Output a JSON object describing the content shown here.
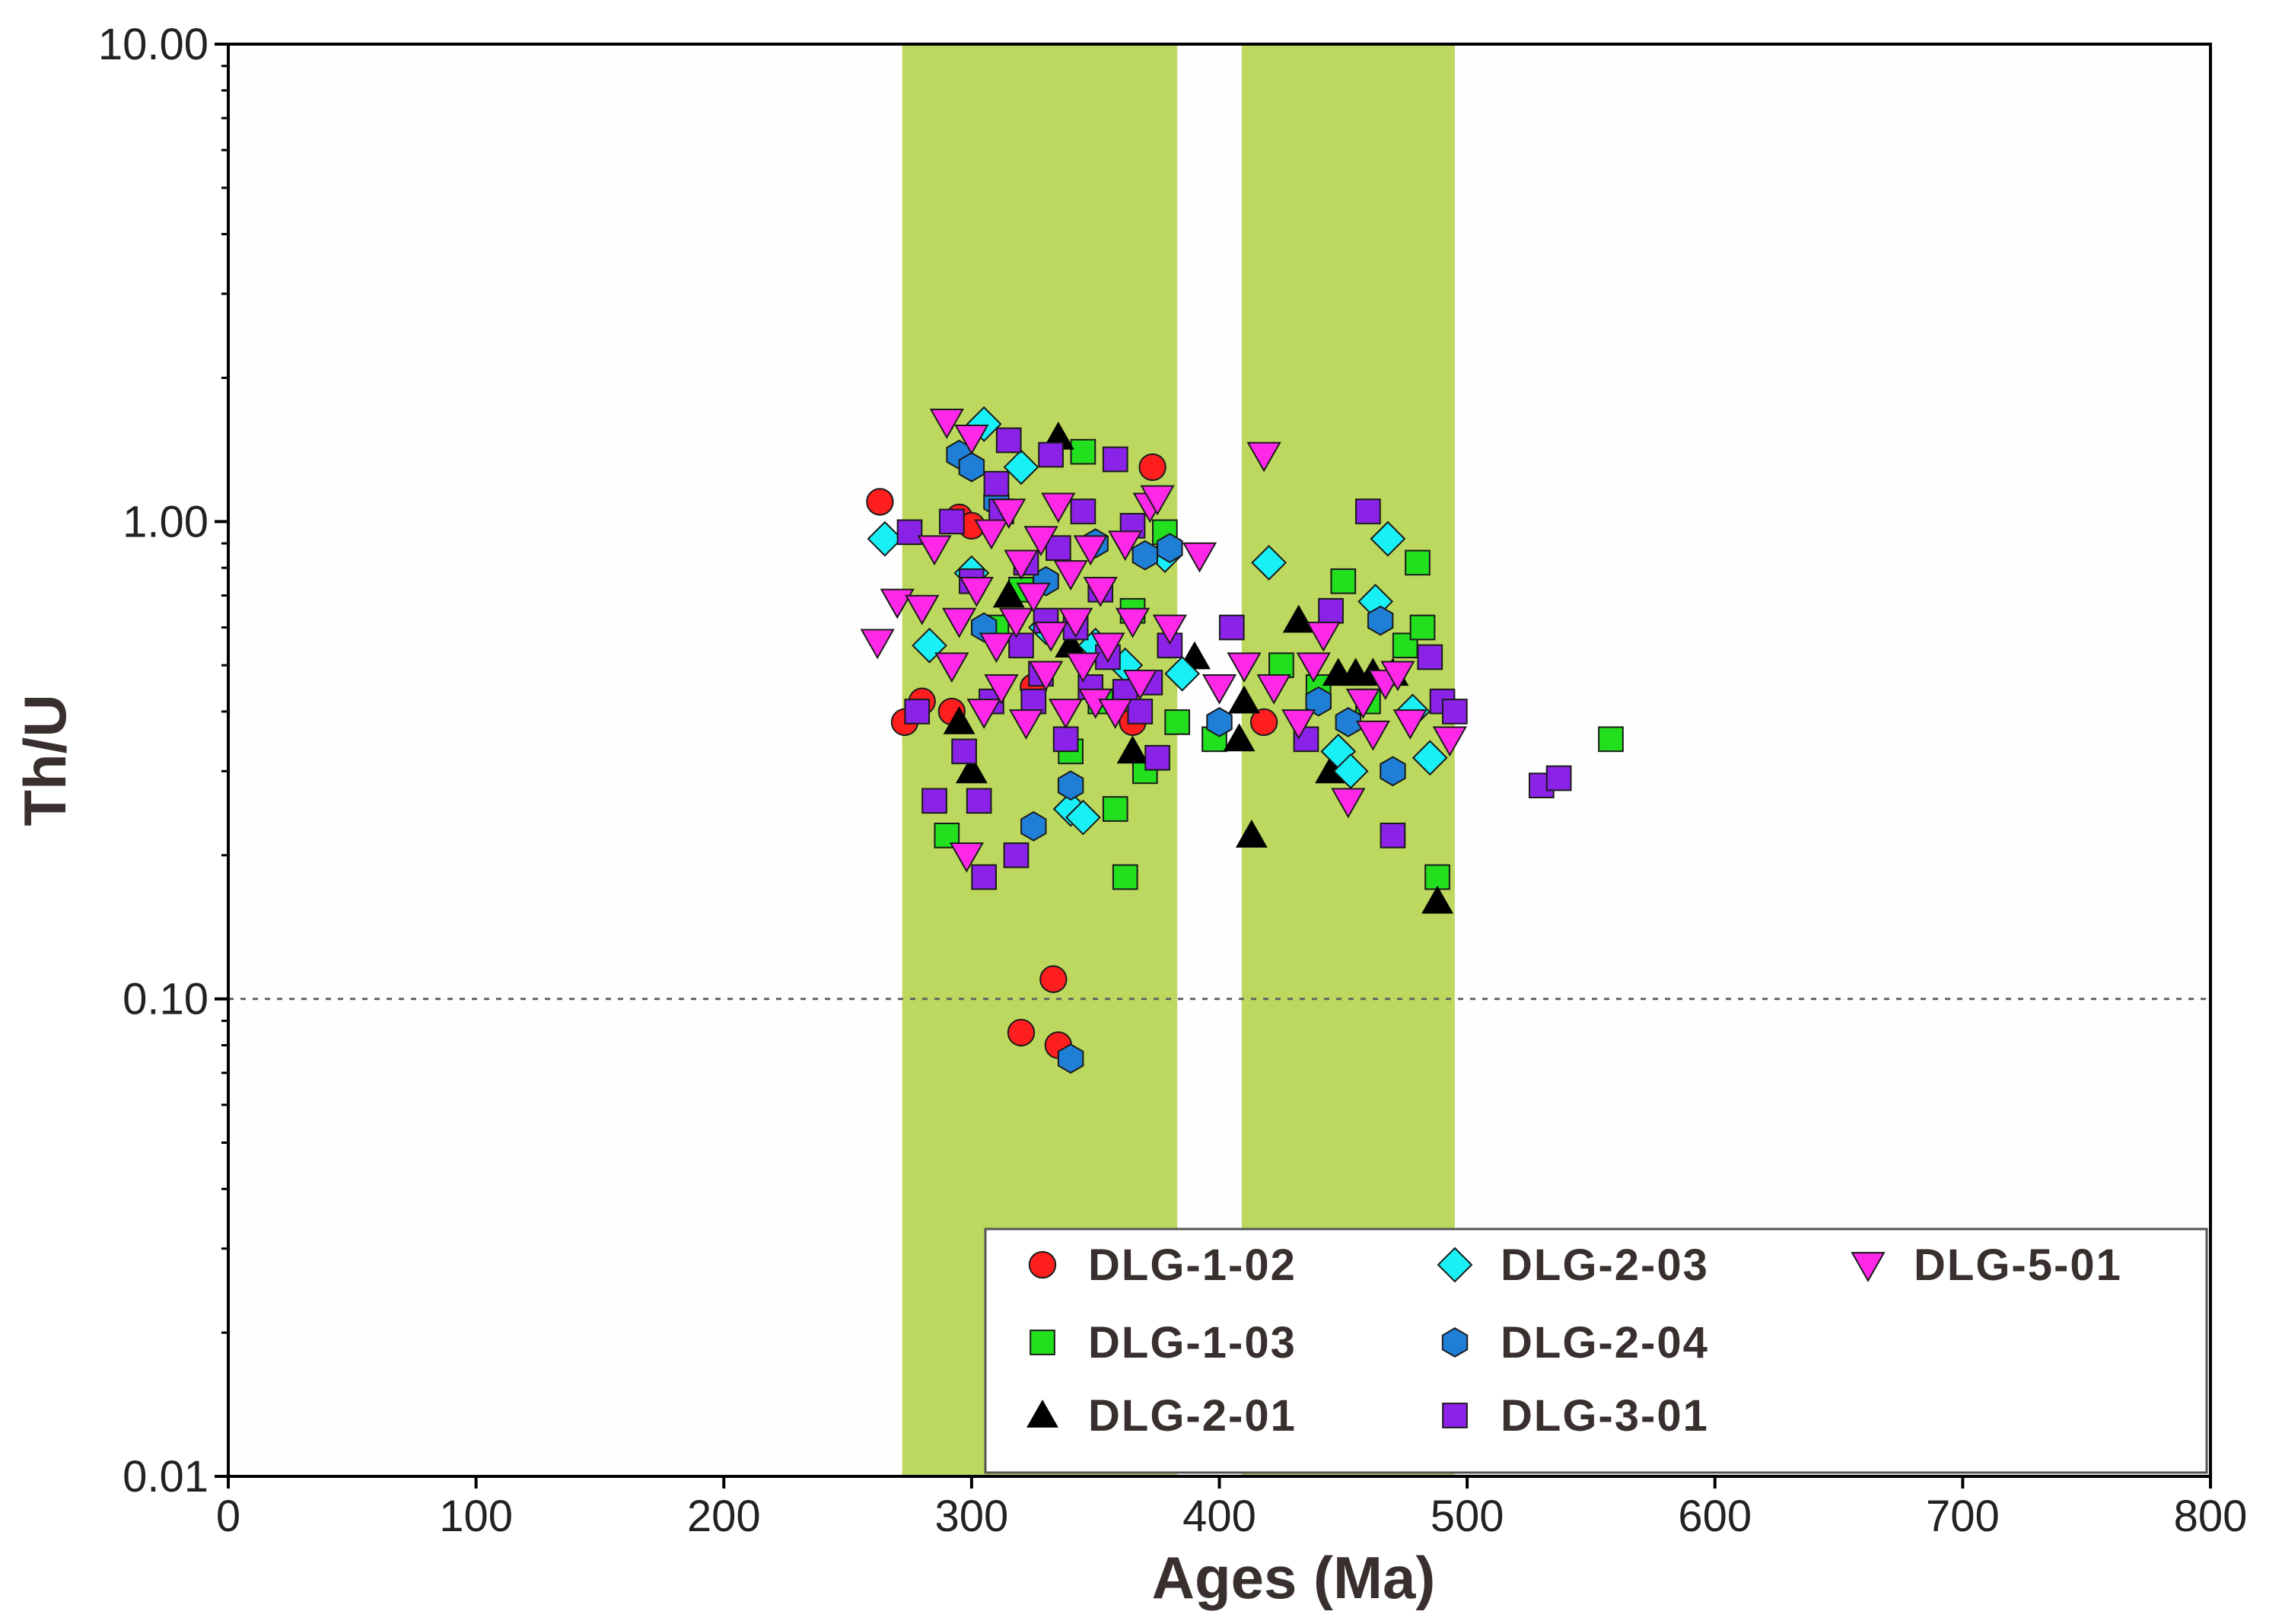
{
  "chart_data": {
    "type": "scatter",
    "title": "",
    "xlabel": "Ages (Ma)",
    "ylabel": "Th/U",
    "xlim": [
      0,
      800
    ],
    "ylim": [
      0.01,
      10
    ],
    "yscale": "log",
    "x_ticks": [
      "0",
      "100",
      "200",
      "300",
      "400",
      "500",
      "600",
      "700",
      "800"
    ],
    "y_ticks": [
      "0.01",
      "0.10",
      "1.00",
      "10.00"
    ],
    "reference_line": {
      "y": 0.1,
      "style": "dotted"
    },
    "shaded_bands": [
      {
        "x_from": 272,
        "x_to": 383,
        "color": "#bcd85e"
      },
      {
        "x_from": 409,
        "x_to": 495,
        "color": "#bcd85e"
      }
    ],
    "legend_position": "bottom-right",
    "series": [
      {
        "name": "DLG-1-02",
        "marker": "circle",
        "color": "#ff1e1e",
        "points": [
          [
            263,
            1.1
          ],
          [
            273,
            0.38
          ],
          [
            280,
            0.42
          ],
          [
            295,
            1.02
          ],
          [
            300,
            0.98
          ],
          [
            320,
            0.085
          ],
          [
            333,
            0.11
          ],
          [
            335,
            0.08
          ],
          [
            365,
            0.38
          ],
          [
            373,
            1.3
          ],
          [
            418,
            0.38
          ],
          [
            292,
            0.4
          ],
          [
            325,
            0.45
          ]
        ]
      },
      {
        "name": "DLG-1-03",
        "marker": "square",
        "color": "#22e01e",
        "points": [
          [
            290,
            0.22
          ],
          [
            340,
            0.33
          ],
          [
            345,
            1.4
          ],
          [
            352,
            0.42
          ],
          [
            358,
            0.25
          ],
          [
            362,
            0.18
          ],
          [
            370,
            0.3
          ],
          [
            378,
            0.95
          ],
          [
            383,
            0.38
          ],
          [
            398,
            0.35
          ],
          [
            425,
            0.5
          ],
          [
            440,
            0.45
          ],
          [
            450,
            0.75
          ],
          [
            460,
            0.42
          ],
          [
            475,
            0.55
          ],
          [
            480,
            0.82
          ],
          [
            482,
            0.6
          ],
          [
            488,
            0.18
          ],
          [
            558,
            0.35
          ],
          [
            310,
            0.6
          ],
          [
            320,
            0.72
          ],
          [
            365,
            0.65
          ]
        ]
      },
      {
        "name": "DLG-2-01",
        "marker": "triangle",
        "color": "#000000",
        "points": [
          [
            295,
            0.38
          ],
          [
            300,
            0.3
          ],
          [
            335,
            1.5
          ],
          [
            365,
            0.33
          ],
          [
            390,
            0.52
          ],
          [
            408,
            0.35
          ],
          [
            410,
            0.42
          ],
          [
            413,
            0.22
          ],
          [
            432,
            0.62
          ],
          [
            445,
            0.3
          ],
          [
            448,
            0.48
          ],
          [
            455,
            0.48
          ],
          [
            462,
            0.48
          ],
          [
            470,
            0.48
          ],
          [
            488,
            0.16
          ],
          [
            315,
            0.7
          ],
          [
            340,
            0.55
          ]
        ]
      },
      {
        "name": "DLG-2-03",
        "marker": "diamond",
        "color": "#19f0f5",
        "points": [
          [
            265,
            0.92
          ],
          [
            283,
            0.55
          ],
          [
            305,
            1.6
          ],
          [
            320,
            1.3
          ],
          [
            340,
            0.25
          ],
          [
            345,
            0.24
          ],
          [
            350,
            0.55
          ],
          [
            362,
            0.5
          ],
          [
            378,
            0.85
          ],
          [
            385,
            0.48
          ],
          [
            420,
            0.82
          ],
          [
            448,
            0.33
          ],
          [
            453,
            0.3
          ],
          [
            463,
            0.68
          ],
          [
            468,
            0.92
          ],
          [
            478,
            0.4
          ],
          [
            485,
            0.32
          ],
          [
            330,
            0.6
          ],
          [
            300,
            0.78
          ]
        ]
      },
      {
        "name": "DLG-2-04",
        "marker": "hexagon",
        "color": "#1f7fd6",
        "points": [
          [
            295,
            1.38
          ],
          [
            300,
            1.3
          ],
          [
            310,
            1.1
          ],
          [
            325,
            0.23
          ],
          [
            340,
            0.28
          ],
          [
            340,
            0.075
          ],
          [
            370,
            0.85
          ],
          [
            380,
            0.88
          ],
          [
            400,
            0.38
          ],
          [
            440,
            0.42
          ],
          [
            452,
            0.38
          ],
          [
            465,
            0.62
          ],
          [
            470,
            0.3
          ],
          [
            305,
            0.6
          ],
          [
            330,
            0.75
          ],
          [
            350,
            0.9
          ]
        ]
      },
      {
        "name": "DLG-3-01",
        "marker": "square",
        "color": "#8b22e8",
        "points": [
          [
            275,
            0.95
          ],
          [
            278,
            0.4
          ],
          [
            285,
            0.26
          ],
          [
            292,
            1.0
          ],
          [
            297,
            0.33
          ],
          [
            300,
            0.75
          ],
          [
            303,
            0.26
          ],
          [
            305,
            0.18
          ],
          [
            308,
            0.42
          ],
          [
            310,
            1.2
          ],
          [
            312,
            1.05
          ],
          [
            315,
            1.48
          ],
          [
            318,
            0.2
          ],
          [
            320,
            0.55
          ],
          [
            322,
            0.82
          ],
          [
            325,
            0.42
          ],
          [
            328,
            0.48
          ],
          [
            330,
            0.62
          ],
          [
            332,
            1.38
          ],
          [
            335,
            0.88
          ],
          [
            338,
            0.35
          ],
          [
            342,
            0.6
          ],
          [
            345,
            1.05
          ],
          [
            348,
            0.45
          ],
          [
            352,
            0.72
          ],
          [
            355,
            0.52
          ],
          [
            358,
            1.35
          ],
          [
            362,
            0.44
          ],
          [
            365,
            0.98
          ],
          [
            368,
            0.4
          ],
          [
            372,
            0.46
          ],
          [
            375,
            0.32
          ],
          [
            380,
            0.55
          ],
          [
            405,
            0.6
          ],
          [
            435,
            0.35
          ],
          [
            445,
            0.65
          ],
          [
            460,
            1.05
          ],
          [
            470,
            0.22
          ],
          [
            485,
            0.52
          ],
          [
            490,
            0.42
          ],
          [
            495,
            0.4
          ],
          [
            530,
            0.28
          ],
          [
            537,
            0.29
          ]
        ]
      },
      {
        "name": "DLG-5-01",
        "marker": "triangle-down",
        "color": "#ff28e8",
        "points": [
          [
            262,
            0.56
          ],
          [
            270,
            0.68
          ],
          [
            280,
            0.66
          ],
          [
            285,
            0.88
          ],
          [
            290,
            1.62
          ],
          [
            292,
            0.5
          ],
          [
            295,
            0.62
          ],
          [
            298,
            0.2
          ],
          [
            300,
            1.5
          ],
          [
            302,
            0.72
          ],
          [
            305,
            0.4
          ],
          [
            308,
            0.95
          ],
          [
            310,
            0.55
          ],
          [
            312,
            0.45
          ],
          [
            315,
            1.05
          ],
          [
            318,
            0.62
          ],
          [
            320,
            0.82
          ],
          [
            322,
            0.38
          ],
          [
            325,
            0.7
          ],
          [
            328,
            0.92
          ],
          [
            330,
            0.48
          ],
          [
            332,
            0.58
          ],
          [
            335,
            1.08
          ],
          [
            338,
            0.4
          ],
          [
            340,
            0.78
          ],
          [
            342,
            0.62
          ],
          [
            345,
            0.5
          ],
          [
            348,
            0.88
          ],
          [
            350,
            0.42
          ],
          [
            352,
            0.72
          ],
          [
            355,
            0.55
          ],
          [
            358,
            0.4
          ],
          [
            362,
            0.9
          ],
          [
            365,
            0.62
          ],
          [
            368,
            0.46
          ],
          [
            372,
            1.08
          ],
          [
            375,
            1.12
          ],
          [
            380,
            0.6
          ],
          [
            392,
            0.85
          ],
          [
            400,
            0.45
          ],
          [
            410,
            0.5
          ],
          [
            418,
            1.38
          ],
          [
            422,
            0.45
          ],
          [
            432,
            0.38
          ],
          [
            438,
            0.5
          ],
          [
            442,
            0.58
          ],
          [
            452,
            0.26
          ],
          [
            458,
            0.42
          ],
          [
            462,
            0.36
          ],
          [
            467,
            0.46
          ],
          [
            472,
            0.48
          ],
          [
            477,
            0.38
          ],
          [
            493,
            0.35
          ]
        ]
      }
    ]
  }
}
